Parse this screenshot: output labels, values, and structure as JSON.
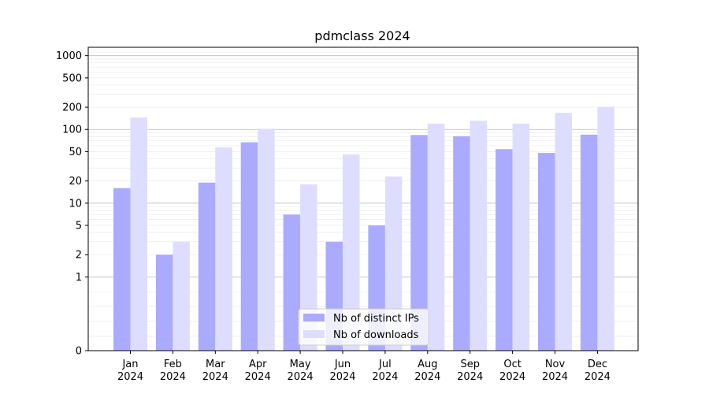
{
  "chart_data": {
    "type": "bar",
    "title": "pdmclass 2024",
    "xlabel": "",
    "ylabel": "",
    "categories": [
      [
        "Jan",
        "2024"
      ],
      [
        "Feb",
        "2024"
      ],
      [
        "Mar",
        "2024"
      ],
      [
        "Apr",
        "2024"
      ],
      [
        "May",
        "2024"
      ],
      [
        "Jun",
        "2024"
      ],
      [
        "Jul",
        "2024"
      ],
      [
        "Aug",
        "2024"
      ],
      [
        "Sep",
        "2024"
      ],
      [
        "Oct",
        "2024"
      ],
      [
        "Nov",
        "2024"
      ],
      [
        "Dec",
        "2024"
      ]
    ],
    "series": [
      {
        "name": "Nb of distinct IPs",
        "color": "#aaaaff",
        "values": [
          16,
          2,
          19,
          67,
          7,
          3,
          5,
          84,
          81,
          54,
          48,
          85
        ]
      },
      {
        "name": "Nb of downloads",
        "color": "#ddddff",
        "values": [
          145,
          3,
          57,
          102,
          18,
          46,
          23,
          120,
          131,
          120,
          168,
          202
        ]
      }
    ],
    "y_scale": "symlog",
    "ylim": [
      0,
      1300
    ],
    "y_ticks": [
      0,
      1,
      2,
      5,
      10,
      20,
      50,
      100,
      200,
      500,
      1000
    ],
    "grid": true,
    "legend_position": "lower-center"
  }
}
